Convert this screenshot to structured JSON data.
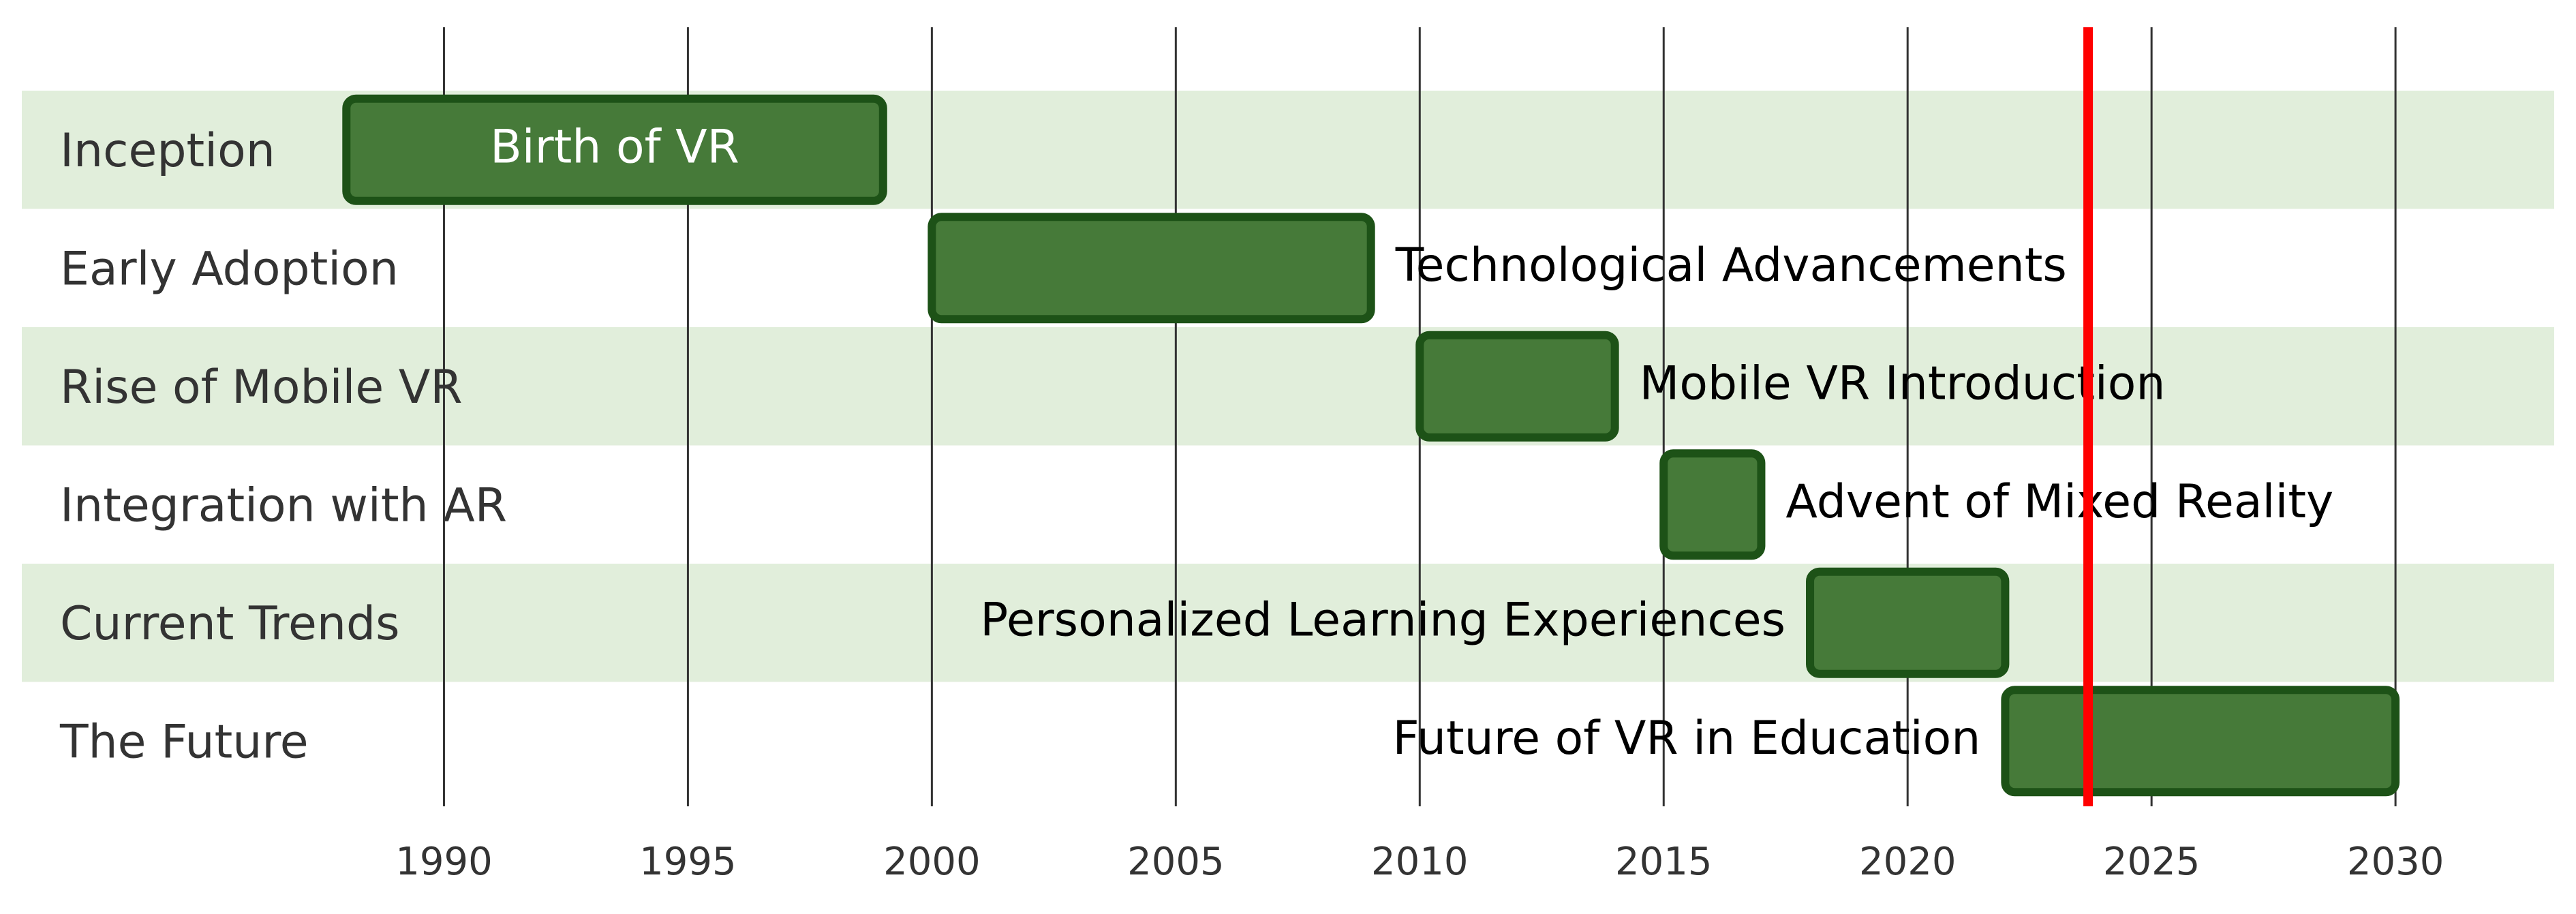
{
  "chart_data": {
    "type": "gantt",
    "x_unit": "year",
    "xlim": [
      1980.9,
      2033.7
    ],
    "x_ticks": [
      1990,
      1995,
      2000,
      2005,
      2010,
      2015,
      2020,
      2025,
      2030
    ],
    "today": 2023.7,
    "grid": true,
    "sections": [
      {
        "name": "Inception",
        "task": "Birth of VR",
        "start": 1988,
        "end": 1999,
        "label_position": "inside"
      },
      {
        "name": "Early Adoption",
        "task": "Technological Advancements",
        "start": 2000,
        "end": 2009,
        "label_position": "right"
      },
      {
        "name": "Rise of Mobile VR",
        "task": "Mobile VR Introduction",
        "start": 2010,
        "end": 2014,
        "label_position": "right"
      },
      {
        "name": "Integration with AR",
        "task": "Advent of Mixed Reality",
        "start": 2015,
        "end": 2017,
        "label_position": "right"
      },
      {
        "name": "Current Trends",
        "task": "Personalized Learning Experiences",
        "start": 2018,
        "end": 2022,
        "label_position": "left"
      },
      {
        "name": "The Future",
        "task": "Future of VR in Education",
        "start": 2022,
        "end": 2030,
        "label_position": "left"
      }
    ],
    "colors": {
      "band": "#e1eedb",
      "bar_fill": "#467a39",
      "bar_stroke": "#1d5217",
      "today_line": "#ff0000",
      "grid": "#333333"
    }
  }
}
